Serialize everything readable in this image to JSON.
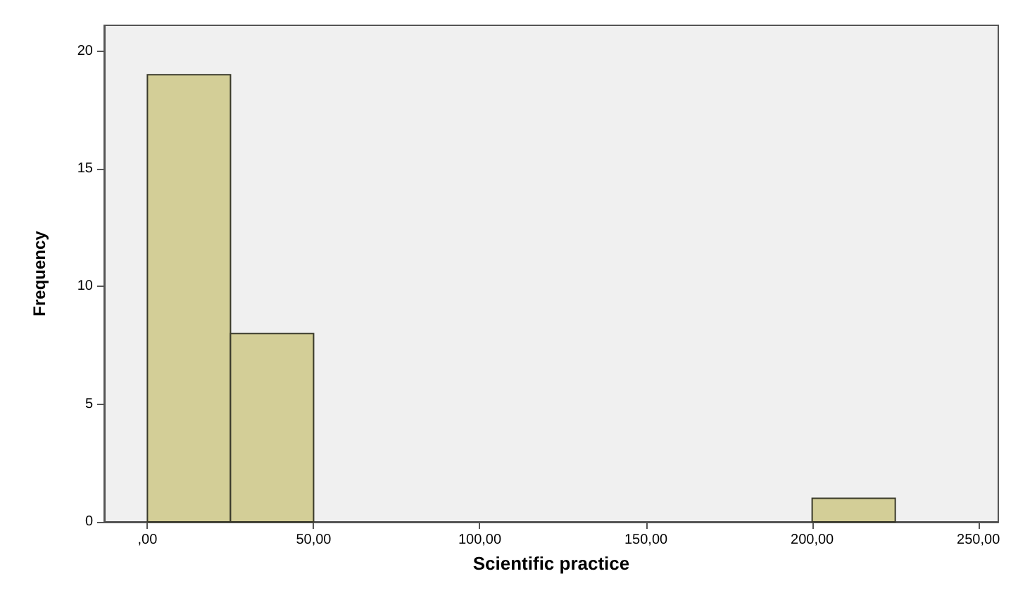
{
  "chart_data": {
    "type": "histogram",
    "xlabel": "Scientific practice",
    "ylabel": "Frequency",
    "bins": [
      0,
      25,
      50,
      75,
      100,
      125,
      150,
      175,
      200,
      225
    ],
    "values": [
      19,
      8,
      0,
      0,
      0,
      0,
      0,
      0,
      1
    ],
    "color": "#d3ce97",
    "xlim": [
      -13,
      256
    ],
    "ylim": [
      0,
      21.1
    ],
    "xticks": [
      {
        "value": 0,
        "label": ",00"
      },
      {
        "value": 50,
        "label": "50,00"
      },
      {
        "value": 100,
        "label": "100,00"
      },
      {
        "value": 150,
        "label": "150,00"
      },
      {
        "value": 200,
        "label": "200,00"
      },
      {
        "value": 250,
        "label": "250,00"
      }
    ],
    "yticks": [
      0,
      5,
      10,
      15,
      20
    ],
    "grid": false
  }
}
